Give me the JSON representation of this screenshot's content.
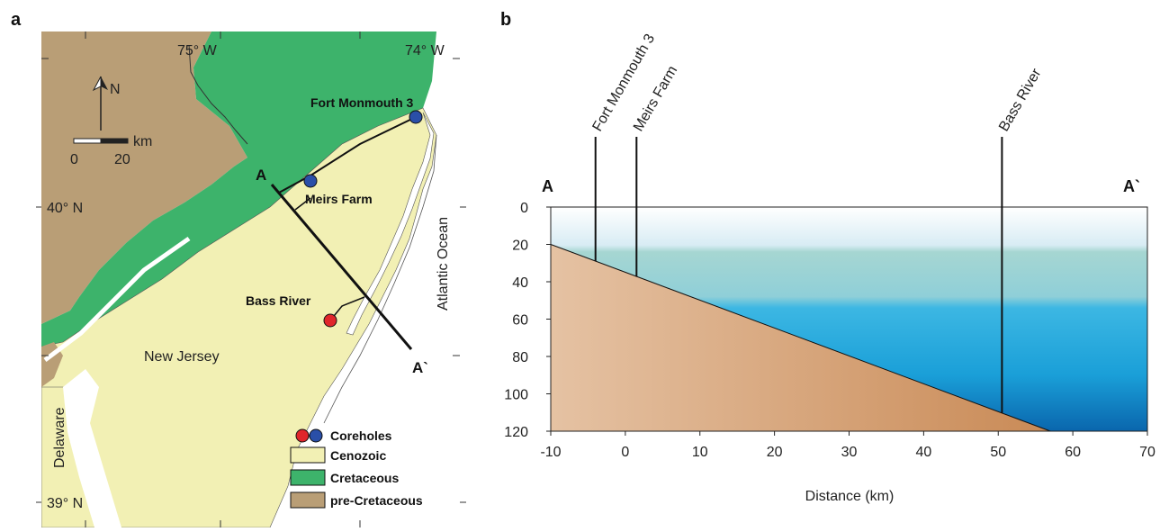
{
  "panel_a": {
    "label": "a",
    "longitudes": [
      "75° W",
      "74° W"
    ],
    "latitudes": [
      "40° N",
      "39° N"
    ],
    "north_label": "N",
    "scale_unit": "km",
    "scale_ticks": [
      "0",
      "20"
    ],
    "places": {
      "new_jersey": "New Jersey",
      "delaware": "Delaware",
      "atlantic": "Atlantic Ocean"
    },
    "section_start": "A",
    "section_end": "A`",
    "sites": [
      {
        "name": "Fort Monmouth 3",
        "color": "#2a4fa8"
      },
      {
        "name": "Meirs Farm",
        "color": "#2a4fa8"
      },
      {
        "name": "Bass River",
        "color": "#e0262b"
      }
    ],
    "legend": [
      {
        "label": "Coreholes",
        "kind": "dots",
        "colors": [
          "#e0262b",
          "#2a4fa8"
        ]
      },
      {
        "label": "Cenozoic",
        "kind": "box",
        "color": "#f2f0b4"
      },
      {
        "label": "Cretaceous",
        "kind": "box",
        "color": "#3db36b"
      },
      {
        "label": "pre-Cretaceous",
        "kind": "box",
        "color": "#b99e76"
      }
    ]
  },
  "panel_b": {
    "label": "b",
    "end_left": "A",
    "end_right": "A`",
    "xlabel": "Distance (km)"
  },
  "chart_data": {
    "type": "area",
    "xlim": [
      -10,
      70
    ],
    "ylim": [
      120,
      0
    ],
    "x_ticks": [
      -10,
      0,
      10,
      20,
      30,
      40,
      50,
      60,
      70
    ],
    "y_ticks": [
      0,
      20,
      40,
      60,
      80,
      100,
      120
    ],
    "seafloor": {
      "x": [
        -10,
        57
      ],
      "y": [
        20,
        120
      ]
    },
    "water_zone_boundaries": [
      25,
      50
    ],
    "sites": [
      {
        "name": "Fort Monmouth 3",
        "x": -4
      },
      {
        "name": "Meirs Farm",
        "x": 1.5
      },
      {
        "name": "Bass River",
        "x": 50.5
      }
    ]
  }
}
